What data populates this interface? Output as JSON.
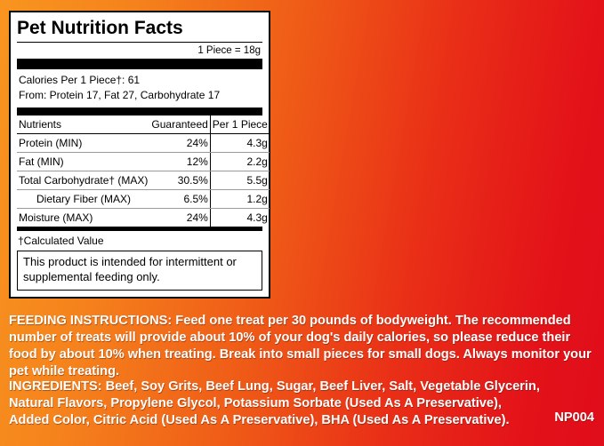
{
  "colors": {
    "background_left": "#f8951f",
    "background_right": "#e00d1a",
    "panel_bg": "#ffffff",
    "panel_text": "#000000",
    "copy_text": "#ffffff"
  },
  "panel": {
    "title": "Pet Nutrition Facts",
    "serving": "1 Piece = 18g",
    "calories_line1": "Calories Per 1 Piece†: 61",
    "calories_line2": "From: Protein 17, Fat 27, Carbohydrate 17",
    "table": {
      "headers": [
        "Nutrients",
        "Guaranteed",
        "Per 1 Piece"
      ],
      "rows": [
        {
          "name": "Protein (MIN)",
          "guaranteed": "24%",
          "per_piece": "4.3g",
          "indent": false
        },
        {
          "name": "Fat (MIN)",
          "guaranteed": "12%",
          "per_piece": "2.2g",
          "indent": false
        },
        {
          "name": "Total Carbohydrate† (MAX)",
          "guaranteed": "30.5%",
          "per_piece": "5.5g",
          "indent": false
        },
        {
          "name": "Dietary Fiber (MAX)",
          "guaranteed": "6.5%",
          "per_piece": "1.2g",
          "indent": true
        },
        {
          "name": "Moisture (MAX)",
          "guaranteed": "24%",
          "per_piece": "4.3g",
          "indent": false
        }
      ]
    },
    "footnote": "†Calculated Value",
    "note": "This product is intended for intermittent or supplemental feeding only."
  },
  "feeding": {
    "label": "FEEDING INSTRUCTIONS:",
    "text": " Feed one treat per 30 pounds of bodyweight. The recommended number of treats will provide about 10% of your dog's daily calories, so please reduce their food by about 10% when treating. Break into small pieces for small dogs. Always monitor your pet while treating."
  },
  "ingredients": {
    "label": "INGREDIENTS:",
    "text": " Beef, Soy Grits, Beef Lung, Sugar, Beef Liver, Salt, Vegetable Glycerin, Natural Flavors, Propylene Glycol, Potassium Sorbate (Used As A Preservative), Added Color, Citric Acid (Used As A Preservative), BHA (Used As A Preservative).",
    "code": "NP004"
  }
}
